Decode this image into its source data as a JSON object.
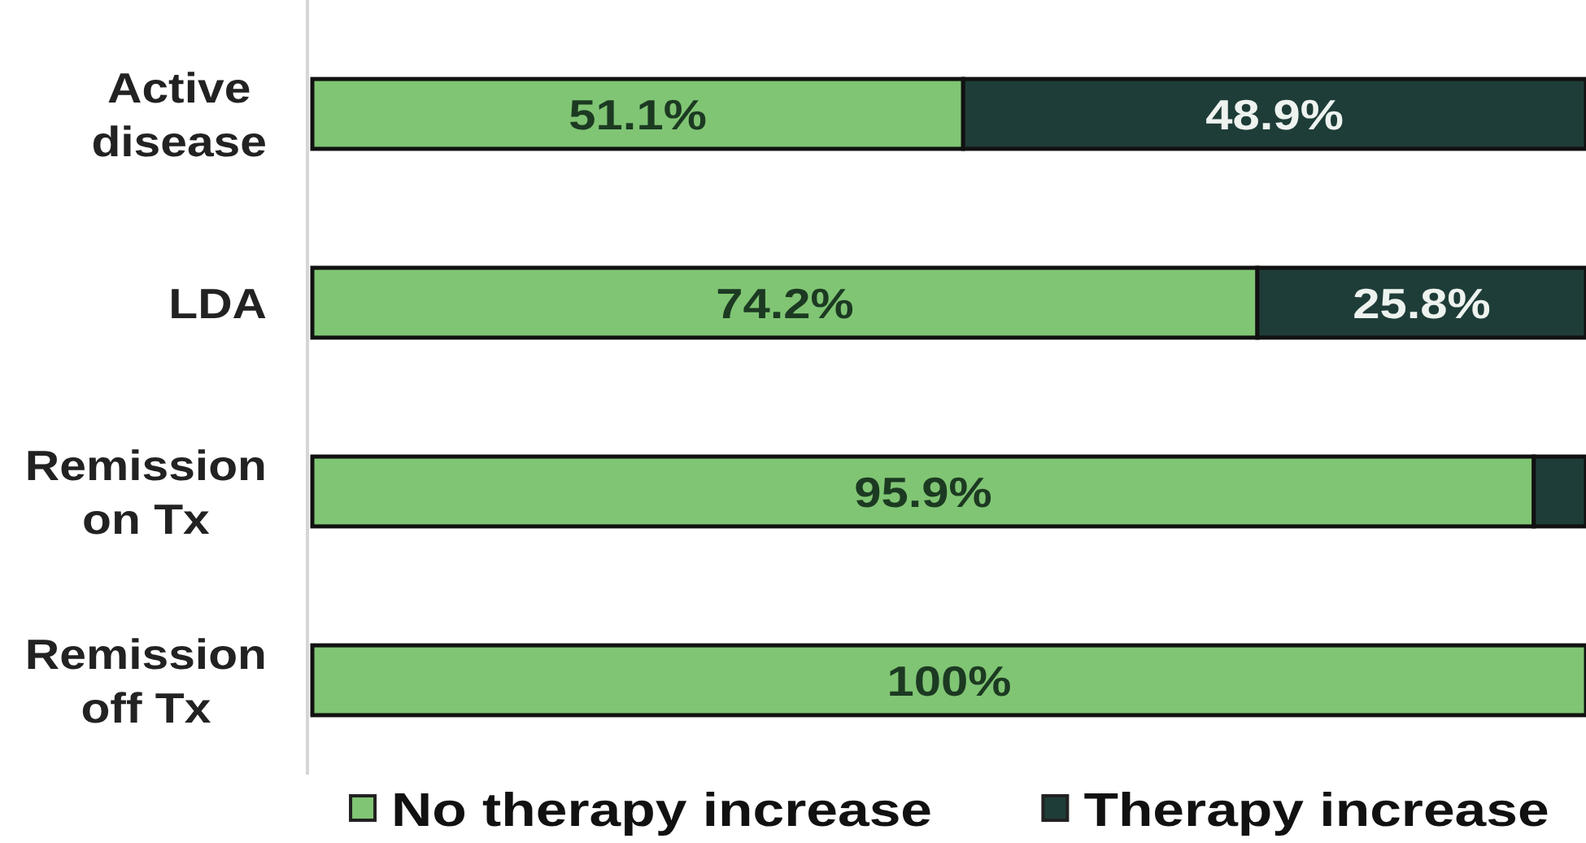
{
  "chart_data": {
    "type": "bar",
    "orientation": "horizontal",
    "stacked": true,
    "categories": [
      "Active disease",
      "LDA",
      "Remission on Tx",
      "Remission off Tx"
    ],
    "series": [
      {
        "name": "No therapy increase",
        "color": "#80c574",
        "values": [
          51.1,
          74.2,
          95.9,
          100
        ],
        "value_labels": [
          "51.1%",
          "74.2%",
          "95.9%",
          "100%"
        ]
      },
      {
        "name": "Therapy increase",
        "color": "#1f3d38",
        "values": [
          48.9,
          25.8,
          4.1,
          null
        ],
        "value_labels": [
          "48.9%",
          "25.8%",
          null,
          null
        ]
      }
    ],
    "xlim": [
      0,
      100
    ],
    "tick_labels": "y",
    "legend": "bottom"
  }
}
